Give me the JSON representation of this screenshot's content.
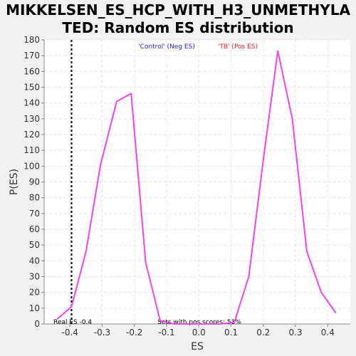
{
  "chart_data": {
    "type": "line",
    "title_lines": [
      "MIKKELSEN_ES_HCP_WITH_H3_UNMETHYLA",
      "TED: Random ES distribution"
    ],
    "xlabel": "ES",
    "ylabel": "P(ES)",
    "xlim": [
      -0.48,
      0.47
    ],
    "ylim": [
      0,
      180
    ],
    "x_ticks": [
      -0.4,
      -0.3,
      -0.2,
      -0.1,
      0.0,
      0.1,
      0.2,
      0.3,
      0.4
    ],
    "x_tick_labels": [
      "-0.4",
      "-0.3",
      "-0.2",
      "-0.1",
      "0.0",
      "0.1",
      "0.2",
      "0.3",
      "0.4"
    ],
    "y_ticks": [
      0,
      10,
      20,
      30,
      40,
      50,
      60,
      70,
      80,
      90,
      100,
      110,
      120,
      130,
      140,
      150,
      160,
      170,
      180
    ],
    "grid": true,
    "legend": [
      {
        "label": "'Control' (Neg ES)",
        "color": "#2222cc"
      },
      {
        "label": "'TB' (Pos ES)",
        "color": "#dd2222"
      }
    ],
    "series": [
      {
        "color": "#ee44ee",
        "x": [
          -0.44,
          -0.395,
          -0.35,
          -0.305,
          -0.255,
          -0.21,
          -0.165,
          -0.12,
          -0.075,
          -0.03,
          0.015,
          0.065,
          0.11,
          0.155,
          0.2,
          0.245,
          0.29,
          0.335,
          0.38,
          0.425
        ],
        "y": [
          3,
          11,
          46,
          101,
          141,
          146,
          39,
          2,
          0,
          0,
          0,
          0,
          1,
          30,
          104,
          173,
          130,
          46,
          20,
          7
        ]
      }
    ],
    "real_es": {
      "x": -0.395,
      "label": "Real ES -0.4",
      "color": "#000000"
    },
    "annotation": "Sets with pos scores: 51%"
  }
}
